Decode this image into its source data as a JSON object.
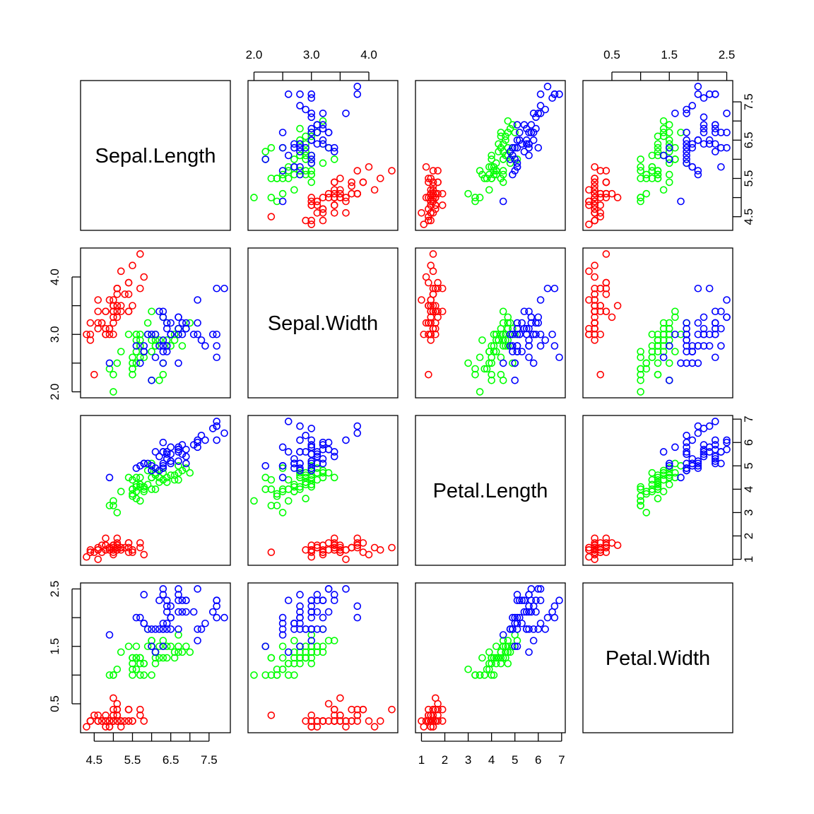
{
  "chart_data": {
    "type": "scatter",
    "kind": "scatterplot-matrix",
    "variables": [
      "Sepal.Length",
      "Sepal.Width",
      "Petal.Length",
      "Petal.Width"
    ],
    "axes": {
      "Sepal.Length": {
        "range": [
          4.3,
          7.9
        ],
        "ticks": [
          4.5,
          5.5,
          6.5,
          7.5
        ],
        "tick_labels": [
          "4.5",
          "5.5",
          "6.5",
          "7.5"
        ]
      },
      "Sepal.Width": {
        "range": [
          2.0,
          4.4
        ],
        "ticks": [
          2.0,
          3.0,
          4.0
        ],
        "tick_labels": [
          "2.0",
          "3.0",
          "4.0"
        ]
      },
      "Petal.Length": {
        "range": [
          1.0,
          6.9
        ],
        "ticks": [
          1,
          2,
          3,
          4,
          5,
          6,
          7
        ],
        "tick_labels": [
          "1",
          "2",
          "3",
          "4",
          "5",
          "6",
          "7"
        ]
      },
      "Petal.Width": {
        "range": [
          0.1,
          2.5
        ],
        "ticks": [
          0.5,
          1.5,
          2.5
        ],
        "tick_labels": [
          "0.5",
          "1.5",
          "2.5"
        ]
      }
    },
    "grid": false,
    "legend": "none",
    "series": [
      {
        "color": "#ff0000",
        "points": [
          [
            5.1,
            3.5,
            1.4,
            0.2
          ],
          [
            4.9,
            3.0,
            1.4,
            0.2
          ],
          [
            4.7,
            3.2,
            1.3,
            0.2
          ],
          [
            4.6,
            3.1,
            1.5,
            0.2
          ],
          [
            5.0,
            3.6,
            1.4,
            0.2
          ],
          [
            5.4,
            3.9,
            1.7,
            0.4
          ],
          [
            4.6,
            3.4,
            1.4,
            0.3
          ],
          [
            5.0,
            3.4,
            1.5,
            0.2
          ],
          [
            4.4,
            2.9,
            1.4,
            0.2
          ],
          [
            4.9,
            3.1,
            1.5,
            0.1
          ],
          [
            5.4,
            3.7,
            1.5,
            0.2
          ],
          [
            4.8,
            3.4,
            1.6,
            0.2
          ],
          [
            4.8,
            3.0,
            1.4,
            0.1
          ],
          [
            4.3,
            3.0,
            1.1,
            0.1
          ],
          [
            5.8,
            4.0,
            1.2,
            0.2
          ],
          [
            5.7,
            4.4,
            1.5,
            0.4
          ],
          [
            5.4,
            3.9,
            1.3,
            0.4
          ],
          [
            5.1,
            3.5,
            1.4,
            0.3
          ],
          [
            5.7,
            3.8,
            1.7,
            0.3
          ],
          [
            5.1,
            3.8,
            1.5,
            0.3
          ],
          [
            5.4,
            3.4,
            1.7,
            0.2
          ],
          [
            5.1,
            3.7,
            1.5,
            0.4
          ],
          [
            4.6,
            3.6,
            1.0,
            0.2
          ],
          [
            5.1,
            3.3,
            1.7,
            0.5
          ],
          [
            4.8,
            3.4,
            1.9,
            0.2
          ],
          [
            5.0,
            3.0,
            1.6,
            0.2
          ],
          [
            5.0,
            3.4,
            1.6,
            0.4
          ],
          [
            5.2,
            3.5,
            1.5,
            0.2
          ],
          [
            5.2,
            3.4,
            1.4,
            0.2
          ],
          [
            4.7,
            3.2,
            1.6,
            0.2
          ],
          [
            4.8,
            3.1,
            1.6,
            0.2
          ],
          [
            5.4,
            3.4,
            1.5,
            0.4
          ],
          [
            5.2,
            4.1,
            1.5,
            0.1
          ],
          [
            5.5,
            4.2,
            1.4,
            0.2
          ],
          [
            4.9,
            3.1,
            1.5,
            0.2
          ],
          [
            5.0,
            3.2,
            1.2,
            0.2
          ],
          [
            5.5,
            3.5,
            1.3,
            0.2
          ],
          [
            4.9,
            3.6,
            1.4,
            0.1
          ],
          [
            4.4,
            3.0,
            1.3,
            0.2
          ],
          [
            5.1,
            3.4,
            1.5,
            0.2
          ],
          [
            5.0,
            3.5,
            1.3,
            0.3
          ],
          [
            4.5,
            2.3,
            1.3,
            0.3
          ],
          [
            4.4,
            3.2,
            1.3,
            0.2
          ],
          [
            5.0,
            3.5,
            1.6,
            0.6
          ],
          [
            5.1,
            3.8,
            1.9,
            0.4
          ],
          [
            4.8,
            3.0,
            1.4,
            0.3
          ],
          [
            5.1,
            3.8,
            1.6,
            0.2
          ],
          [
            4.6,
            3.2,
            1.4,
            0.2
          ],
          [
            5.3,
            3.7,
            1.5,
            0.2
          ],
          [
            5.0,
            3.3,
            1.4,
            0.2
          ]
        ]
      },
      {
        "color": "#00ff00",
        "points": [
          [
            7.0,
            3.2,
            4.7,
            1.4
          ],
          [
            6.4,
            3.2,
            4.5,
            1.5
          ],
          [
            6.9,
            3.1,
            4.9,
            1.5
          ],
          [
            5.5,
            2.3,
            4.0,
            1.3
          ],
          [
            6.5,
            2.8,
            4.6,
            1.5
          ],
          [
            5.7,
            2.8,
            4.5,
            1.3
          ],
          [
            6.3,
            3.3,
            4.7,
            1.6
          ],
          [
            4.9,
            2.4,
            3.3,
            1.0
          ],
          [
            6.6,
            2.9,
            4.6,
            1.3
          ],
          [
            5.2,
            2.7,
            3.9,
            1.4
          ],
          [
            5.0,
            2.0,
            3.5,
            1.0
          ],
          [
            5.9,
            3.0,
            4.2,
            1.5
          ],
          [
            6.0,
            2.2,
            4.0,
            1.0
          ],
          [
            6.1,
            2.9,
            4.7,
            1.4
          ],
          [
            5.6,
            2.9,
            3.6,
            1.3
          ],
          [
            6.7,
            3.1,
            4.4,
            1.4
          ],
          [
            5.6,
            3.0,
            4.5,
            1.5
          ],
          [
            5.8,
            2.7,
            4.1,
            1.0
          ],
          [
            6.2,
            2.2,
            4.5,
            1.5
          ],
          [
            5.6,
            2.5,
            3.9,
            1.1
          ],
          [
            5.9,
            3.2,
            4.8,
            1.8
          ],
          [
            6.1,
            2.8,
            4.0,
            1.3
          ],
          [
            6.3,
            2.5,
            4.9,
            1.5
          ],
          [
            6.1,
            2.8,
            4.7,
            1.2
          ],
          [
            6.4,
            2.9,
            4.3,
            1.3
          ],
          [
            6.6,
            3.0,
            4.4,
            1.4
          ],
          [
            6.8,
            2.8,
            4.8,
            1.4
          ],
          [
            6.7,
            3.0,
            5.0,
            1.7
          ],
          [
            6.0,
            2.9,
            4.5,
            1.5
          ],
          [
            5.7,
            2.6,
            3.5,
            1.0
          ],
          [
            5.5,
            2.4,
            3.8,
            1.1
          ],
          [
            5.5,
            2.4,
            3.7,
            1.0
          ],
          [
            5.8,
            2.7,
            3.9,
            1.2
          ],
          [
            6.0,
            2.7,
            5.1,
            1.6
          ],
          [
            5.4,
            3.0,
            4.5,
            1.5
          ],
          [
            6.0,
            3.4,
            4.5,
            1.6
          ],
          [
            6.7,
            3.1,
            4.7,
            1.5
          ],
          [
            6.3,
            2.3,
            4.4,
            1.3
          ],
          [
            5.6,
            3.0,
            4.1,
            1.3
          ],
          [
            5.5,
            2.5,
            4.0,
            1.3
          ],
          [
            5.5,
            2.6,
            4.4,
            1.2
          ],
          [
            6.1,
            3.0,
            4.6,
            1.4
          ],
          [
            5.8,
            2.6,
            4.0,
            1.2
          ],
          [
            5.0,
            2.3,
            3.3,
            1.0
          ],
          [
            5.6,
            2.7,
            4.2,
            1.3
          ],
          [
            5.7,
            3.0,
            4.2,
            1.2
          ],
          [
            5.7,
            2.9,
            4.2,
            1.3
          ],
          [
            6.2,
            2.9,
            4.3,
            1.3
          ],
          [
            5.1,
            2.5,
            3.0,
            1.1
          ],
          [
            5.7,
            2.8,
            4.1,
            1.3
          ]
        ]
      },
      {
        "color": "#0000ff",
        "points": [
          [
            6.3,
            3.3,
            6.0,
            2.5
          ],
          [
            5.8,
            2.7,
            5.1,
            1.9
          ],
          [
            7.1,
            3.0,
            5.9,
            2.1
          ],
          [
            6.3,
            2.9,
            5.6,
            1.8
          ],
          [
            6.5,
            3.0,
            5.8,
            2.2
          ],
          [
            7.6,
            3.0,
            6.6,
            2.1
          ],
          [
            4.9,
            2.5,
            4.5,
            1.7
          ],
          [
            7.3,
            2.9,
            6.3,
            1.8
          ],
          [
            6.7,
            2.5,
            5.8,
            1.8
          ],
          [
            7.2,
            3.6,
            6.1,
            2.5
          ],
          [
            6.5,
            3.2,
            5.1,
            2.0
          ],
          [
            6.4,
            2.7,
            5.3,
            1.9
          ],
          [
            6.8,
            3.0,
            5.5,
            2.1
          ],
          [
            5.7,
            2.5,
            5.0,
            2.0
          ],
          [
            5.8,
            2.8,
            5.1,
            2.4
          ],
          [
            6.4,
            3.2,
            5.3,
            2.3
          ],
          [
            6.5,
            3.0,
            5.5,
            1.8
          ],
          [
            7.7,
            3.8,
            6.7,
            2.2
          ],
          [
            7.7,
            2.6,
            6.9,
            2.3
          ],
          [
            6.0,
            2.2,
            5.0,
            1.5
          ],
          [
            6.9,
            3.2,
            5.7,
            2.3
          ],
          [
            5.6,
            2.8,
            4.9,
            2.0
          ],
          [
            7.7,
            2.8,
            6.7,
            2.0
          ],
          [
            6.3,
            2.7,
            4.9,
            1.8
          ],
          [
            6.7,
            3.3,
            5.7,
            2.1
          ],
          [
            7.2,
            3.2,
            6.0,
            1.8
          ],
          [
            6.2,
            2.8,
            4.8,
            1.8
          ],
          [
            6.1,
            3.0,
            4.9,
            1.8
          ],
          [
            6.4,
            2.8,
            5.6,
            2.1
          ],
          [
            7.2,
            3.0,
            5.8,
            1.6
          ],
          [
            7.4,
            2.8,
            6.1,
            1.9
          ],
          [
            7.9,
            3.8,
            6.4,
            2.0
          ],
          [
            6.4,
            2.8,
            5.6,
            2.2
          ],
          [
            6.3,
            2.8,
            5.1,
            1.5
          ],
          [
            6.1,
            2.6,
            5.6,
            1.4
          ],
          [
            7.7,
            3.0,
            6.1,
            2.3
          ],
          [
            6.3,
            3.4,
            5.6,
            2.4
          ],
          [
            6.4,
            3.1,
            5.5,
            1.8
          ],
          [
            6.0,
            3.0,
            4.8,
            1.8
          ],
          [
            6.9,
            3.1,
            5.4,
            2.1
          ],
          [
            6.7,
            3.1,
            5.6,
            2.4
          ],
          [
            6.9,
            3.1,
            5.1,
            2.3
          ],
          [
            5.8,
            2.7,
            5.1,
            1.9
          ],
          [
            6.8,
            3.2,
            5.9,
            2.3
          ],
          [
            6.7,
            3.3,
            5.7,
            2.5
          ],
          [
            6.7,
            3.0,
            5.2,
            2.3
          ],
          [
            6.3,
            2.5,
            5.0,
            1.9
          ],
          [
            6.5,
            3.0,
            5.2,
            2.0
          ],
          [
            6.2,
            3.4,
            5.4,
            2.3
          ],
          [
            5.9,
            3.0,
            5.1,
            1.8
          ]
        ]
      }
    ]
  }
}
